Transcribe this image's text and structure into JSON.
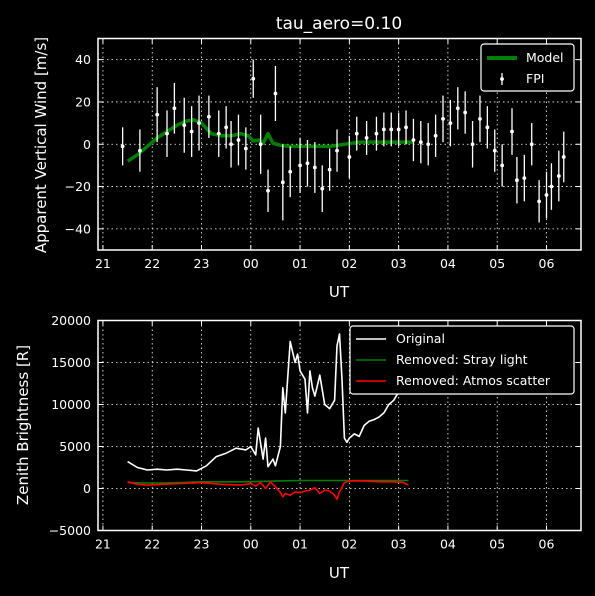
{
  "chart_data": [
    {
      "type": "line",
      "title": "tau_aero=0.10",
      "xlabel": "UT",
      "ylabel": "Apparent Vertical Wind [m/s]",
      "xlim": [
        20.9,
        30.7
      ],
      "ylim": [
        -50,
        50
      ],
      "xtick_values": [
        21,
        22,
        23,
        24,
        25,
        26,
        27,
        28,
        29,
        30
      ],
      "xtick_labels": [
        "21",
        "22",
        "23",
        "00",
        "01",
        "02",
        "03",
        "04",
        "05",
        "06"
      ],
      "ytick_values": [
        -40,
        -20,
        0,
        20,
        40
      ],
      "ytick_labels": [
        "−40",
        "−20",
        "0",
        "20",
        "40"
      ],
      "grid": true,
      "legend_position": "top-right",
      "series": [
        {
          "name": "Model",
          "color": "#007f00",
          "kind": "line",
          "x": [
            21.5,
            21.7,
            21.9,
            22.1,
            22.3,
            22.5,
            22.7,
            22.85,
            23.0,
            23.2,
            23.4,
            23.6,
            23.8,
            23.95,
            24.05,
            24.15,
            24.25,
            24.35,
            24.45,
            24.6,
            24.8,
            25.0,
            25.3,
            25.6,
            25.9,
            26.2,
            26.6,
            27.0,
            27.3
          ],
          "y": [
            -8,
            -5,
            -1,
            3,
            6,
            9,
            11,
            11.5,
            10,
            5,
            4,
            4,
            5,
            4,
            1.5,
            2,
            0.5,
            5,
            0.5,
            -0.5,
            -1,
            -1,
            -1,
            -1,
            0,
            1,
            1,
            1,
            1
          ]
        },
        {
          "name": "FPI",
          "color": "#ffffff",
          "kind": "errorbar",
          "x": [
            21.4,
            21.75,
            22.1,
            22.3,
            22.45,
            22.65,
            22.8,
            22.95,
            23.15,
            23.35,
            23.5,
            23.6,
            23.75,
            23.9,
            24.05,
            24.2,
            24.35,
            24.5,
            24.65,
            24.8,
            25.0,
            25.15,
            25.3,
            25.45,
            25.6,
            25.75,
            26.0,
            26.15,
            26.35,
            26.55,
            26.7,
            26.85,
            27.0,
            27.15,
            27.3,
            27.45,
            27.6,
            27.75,
            27.9,
            28.05,
            28.2,
            28.35,
            28.5,
            28.65,
            28.8,
            28.95,
            29.1,
            29.3,
            29.4,
            29.55,
            29.7,
            29.85,
            30.0,
            30.1,
            30.25,
            30.35
          ],
          "y": [
            -1,
            -3,
            14,
            5,
            17,
            9,
            6,
            10,
            13,
            5,
            8,
            0,
            2,
            -2,
            31,
            0,
            -22,
            24,
            -18,
            -13,
            -10,
            -9,
            -11,
            -21,
            -12,
            -3,
            -6,
            5,
            3,
            5,
            7,
            7,
            7,
            8,
            2,
            1,
            0,
            4,
            12,
            10,
            17,
            15,
            0,
            12,
            8,
            -3,
            -10,
            6,
            -17,
            -16,
            0,
            -27,
            -24,
            -20,
            -15,
            -6
          ],
          "err": [
            9,
            10,
            13,
            11,
            12,
            13,
            12,
            13,
            10,
            11,
            10,
            11,
            12,
            10,
            9,
            14,
            10,
            13,
            18,
            12,
            13,
            11,
            12,
            11,
            10,
            10,
            10,
            8,
            8,
            8,
            8,
            8,
            8,
            8,
            10,
            10,
            10,
            10,
            11,
            11,
            10,
            10,
            11,
            11,
            10,
            10,
            10,
            11,
            11,
            11,
            10,
            10,
            11,
            11,
            12,
            12
          ]
        }
      ]
    },
    {
      "type": "line",
      "title": "",
      "xlabel": "UT",
      "ylabel": "Zenith Brightness [R]",
      "xlim": [
        20.9,
        30.7
      ],
      "ylim": [
        -5000,
        20000
      ],
      "xtick_values": [
        21,
        22,
        23,
        24,
        25,
        26,
        27,
        28,
        29,
        30
      ],
      "xtick_labels": [
        "21",
        "22",
        "23",
        "00",
        "01",
        "02",
        "03",
        "04",
        "05",
        "06"
      ],
      "ytick_values": [
        -5000,
        0,
        5000,
        10000,
        15000,
        20000
      ],
      "ytick_labels": [
        "−5000",
        "0",
        "5000",
        "10000",
        "15000",
        "20000"
      ],
      "grid": true,
      "legend_position": "top-right",
      "series": [
        {
          "name": "Original",
          "color": "#ffffff",
          "x": [
            21.5,
            21.7,
            21.9,
            22.1,
            22.3,
            22.5,
            22.7,
            22.9,
            23.1,
            23.3,
            23.5,
            23.7,
            23.9,
            24.0,
            24.1,
            24.15,
            24.25,
            24.3,
            24.35,
            24.45,
            24.5,
            24.6,
            24.65,
            24.7,
            24.8,
            24.9,
            24.95,
            25.0,
            25.1,
            25.15,
            25.2,
            25.25,
            25.3,
            25.4,
            25.5,
            25.6,
            25.7,
            25.75,
            25.8,
            25.85,
            25.9,
            25.95,
            26.0,
            26.1,
            26.2,
            26.3,
            26.4,
            26.5,
            26.6,
            26.7,
            26.8,
            26.9,
            27.0,
            27.1,
            27.2
          ],
          "y": [
            3200,
            2500,
            2200,
            2300,
            2200,
            2300,
            2200,
            2100,
            2700,
            3800,
            4200,
            4800,
            4600,
            5000,
            4000,
            7200,
            3500,
            6000,
            2600,
            3500,
            2700,
            5000,
            12000,
            9000,
            17500,
            15000,
            16000,
            14000,
            13000,
            9000,
            14000,
            12000,
            11000,
            13500,
            10000,
            9500,
            10500,
            17000,
            18400,
            13000,
            6000,
            5500,
            6000,
            6500,
            6200,
            7500,
            8000,
            8200,
            8500,
            9000,
            10000,
            10500,
            11500,
            12000,
            12500
          ]
        },
        {
          "name": "Removed: Stray light",
          "color": "#007f00",
          "x": [
            21.5,
            21.8,
            22.2,
            22.6,
            23.0,
            23.4,
            23.8,
            24.2,
            24.6,
            25.0,
            25.4,
            25.8,
            26.2,
            26.6,
            27.0,
            27.2
          ],
          "y": [
            700,
            650,
            650,
            700,
            800,
            800,
            800,
            850,
            900,
            950,
            950,
            950,
            950,
            950,
            950,
            950
          ]
        },
        {
          "name": "Removed: Atmos scatter",
          "color": "#ff0000",
          "x": [
            21.5,
            21.7,
            21.9,
            22.2,
            22.6,
            23.0,
            23.4,
            23.8,
            24.0,
            24.1,
            24.2,
            24.3,
            24.4,
            24.5,
            24.6,
            24.65,
            24.7,
            24.8,
            24.9,
            25.0,
            25.1,
            25.2,
            25.3,
            25.4,
            25.5,
            25.6,
            25.7,
            25.75,
            25.8,
            25.9,
            26.0,
            26.3,
            26.6,
            26.9,
            27.1,
            27.2
          ],
          "y": [
            800,
            500,
            400,
            500,
            600,
            700,
            500,
            400,
            600,
            300,
            700,
            0,
            800,
            200,
            -500,
            -1000,
            -600,
            -800,
            -400,
            -500,
            -300,
            -200,
            100,
            -600,
            -200,
            -300,
            -800,
            -1300,
            -400,
            700,
            900,
            900,
            800,
            800,
            700,
            400
          ]
        }
      ]
    }
  ]
}
